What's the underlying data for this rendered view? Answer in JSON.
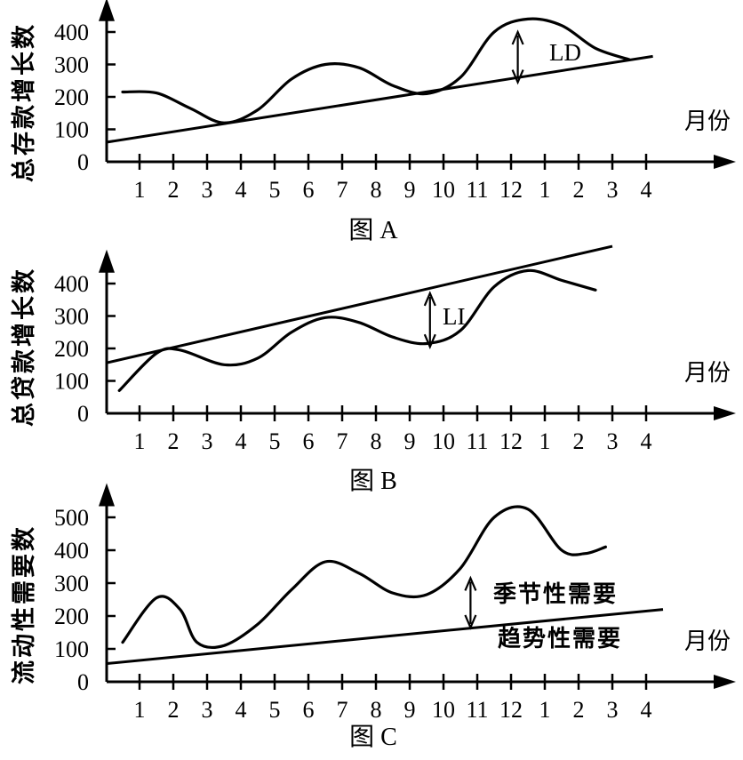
{
  "chart_data": [
    {
      "type": "line",
      "caption": "图 A",
      "ylabel": "总存款增长数",
      "xlabel": "月份",
      "categories": [
        "1",
        "2",
        "3",
        "4",
        "5",
        "6",
        "7",
        "8",
        "9",
        "10",
        "11",
        "12",
        "1",
        "2",
        "3",
        "4"
      ],
      "yticks": [
        "0",
        "100",
        "200",
        "300",
        "400"
      ],
      "ylim": [
        0,
        450
      ],
      "series": [
        {
          "values": [
            [
              0.5,
              215
            ],
            [
              1.5,
              212
            ],
            [
              2.5,
              165
            ],
            [
              3.5,
              120
            ],
            [
              4.5,
              160
            ],
            [
              5.5,
              255
            ],
            [
              6.5,
              300
            ],
            [
              7.5,
              290
            ],
            [
              8.5,
              235
            ],
            [
              9.5,
              210
            ],
            [
              10.5,
              260
            ],
            [
              11.5,
              400
            ],
            [
              12.5,
              440
            ],
            [
              13.5,
              420
            ],
            [
              14.5,
              350
            ],
            [
              15.5,
              315
            ]
          ]
        },
        {
          "values": [
            [
              0,
              60
            ],
            [
              16.2,
              325
            ]
          ]
        }
      ],
      "annotations": [
        {
          "label": "LD",
          "x": 12.2,
          "from": 245,
          "to": 400
        }
      ]
    },
    {
      "type": "line",
      "caption": "图 B",
      "ylabel": "总贷款增长数",
      "xlabel": "月份",
      "categories": [
        "1",
        "2",
        "3",
        "4",
        "5",
        "6",
        "7",
        "8",
        "9",
        "10",
        "11",
        "12",
        "1",
        "2",
        "3",
        "4"
      ],
      "yticks": [
        "0",
        "100",
        "200",
        "300",
        "400"
      ],
      "ylim": [
        0,
        450
      ],
      "series": [
        {
          "values": [
            [
              0.4,
              70
            ],
            [
              1.5,
              185
            ],
            [
              2.2,
              195
            ],
            [
              3.5,
              150
            ],
            [
              4.5,
              170
            ],
            [
              5.5,
              250
            ],
            [
              6.5,
              295
            ],
            [
              7.5,
              280
            ],
            [
              8.5,
              235
            ],
            [
              9.5,
              215
            ],
            [
              10.5,
              255
            ],
            [
              11.5,
              390
            ],
            [
              12.5,
              440
            ],
            [
              13.5,
              410
            ],
            [
              14.5,
              380
            ]
          ]
        },
        {
          "values": [
            [
              0,
              155
            ],
            [
              15.0,
              515
            ]
          ]
        }
      ],
      "annotations": [
        {
          "label": "LI",
          "x": 9.6,
          "from": 205,
          "to": 370
        }
      ]
    },
    {
      "type": "line",
      "caption": "图 C",
      "ylabel": "流动性需要数",
      "xlabel": "月份",
      "categories": [
        "1",
        "2",
        "3",
        "4",
        "5",
        "6",
        "7",
        "8",
        "9",
        "10",
        "11",
        "12",
        "1",
        "2",
        "3",
        "4"
      ],
      "yticks": [
        "0",
        "100",
        "200",
        "300",
        "400",
        "500"
      ],
      "ylim": [
        0,
        550
      ],
      "series": [
        {
          "values": [
            [
              0.5,
              120
            ],
            [
              1.5,
              255
            ],
            [
              2.2,
              220
            ],
            [
              2.7,
              120
            ],
            [
              3.5,
              110
            ],
            [
              4.5,
              175
            ],
            [
              5.5,
              280
            ],
            [
              6.5,
              365
            ],
            [
              7.5,
              330
            ],
            [
              8.5,
              270
            ],
            [
              9.5,
              265
            ],
            [
              10.5,
              345
            ],
            [
              11.5,
              500
            ],
            [
              12.5,
              525
            ],
            [
              13.5,
              400
            ],
            [
              14.2,
              390
            ],
            [
              14.8,
              410
            ]
          ]
        },
        {
          "values": [
            [
              0,
              55
            ],
            [
              16.5,
              220
            ]
          ]
        }
      ],
      "annotations": [
        {
          "label": "季节性需要",
          "x": 10.8,
          "from": 165,
          "to": 315
        },
        {
          "label": "趋势性需要"
        }
      ]
    }
  ]
}
